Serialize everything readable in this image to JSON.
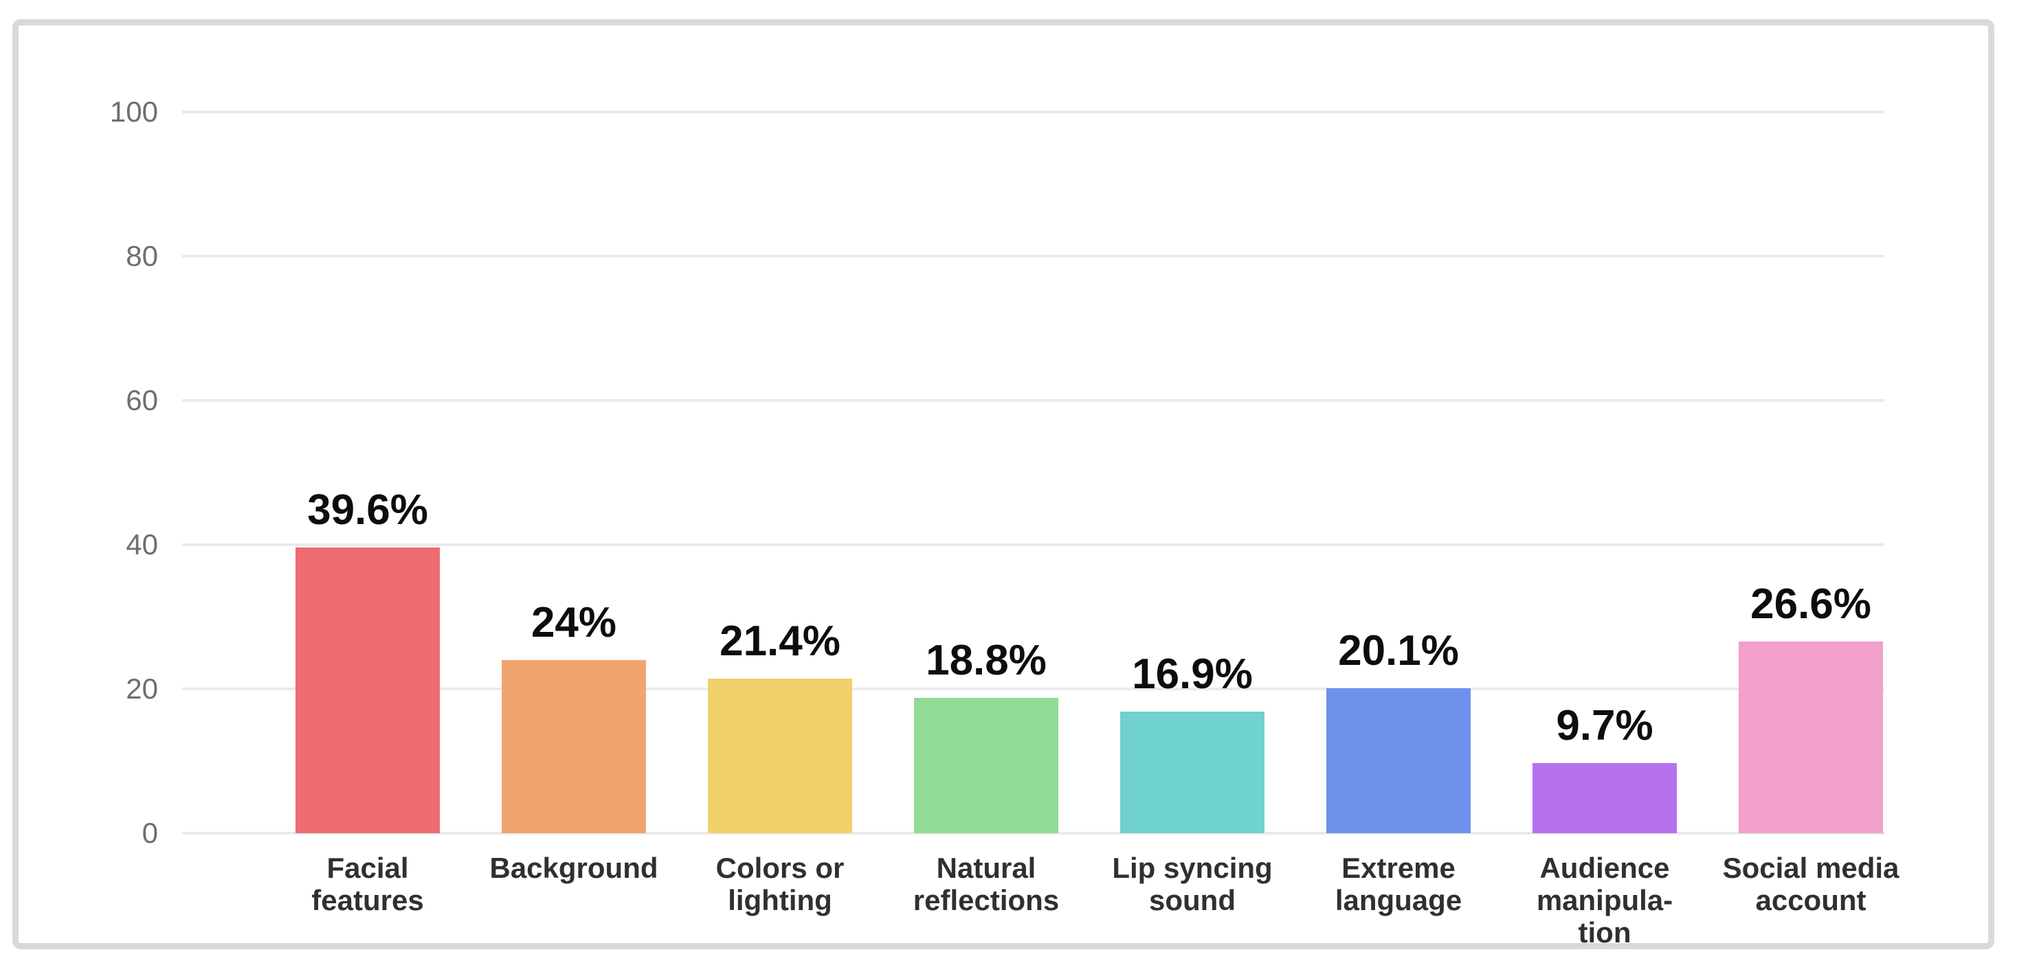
{
  "chart_data": {
    "type": "bar",
    "title": "",
    "xlabel": "",
    "ylabel": "",
    "ylim": [
      0,
      100
    ],
    "yticks": [
      0,
      20,
      40,
      60,
      80,
      100
    ],
    "grid": true,
    "legend": "none",
    "categories": [
      "Facial features",
      "Background",
      "Colors or lighting",
      "Natural reflections",
      "Lip syncing sound",
      "Extreme language",
      "Audience manipulation",
      "Social media account"
    ],
    "values": [
      39.6,
      24,
      21.4,
      18.8,
      16.9,
      20.1,
      9.7,
      26.6
    ],
    "bars": [
      {
        "label_lines": [
          "Facial",
          "features"
        ],
        "value": 39.6,
        "display_value": "39.6%",
        "color": "#EC6C70"
      },
      {
        "label_lines": [
          "Background"
        ],
        "value": 24,
        "display_value": "24%",
        "color": "#F0A570"
      },
      {
        "label_lines": [
          "Colors or",
          "lighting"
        ],
        "value": 21.4,
        "display_value": "21.4%",
        "color": "#F0D069"
      },
      {
        "label_lines": [
          "Natural",
          "reflections"
        ],
        "value": 18.8,
        "display_value": "18.8%",
        "color": "#90DB96"
      },
      {
        "label_lines": [
          "Lip syncing",
          "sound"
        ],
        "value": 16.9,
        "display_value": "16.9%",
        "color": "#6FD2CF"
      },
      {
        "label_lines": [
          "Extreme",
          "language"
        ],
        "value": 20.1,
        "display_value": "20.1%",
        "color": "#6E92EC"
      },
      {
        "label_lines": [
          "Audience",
          "manipula-",
          "tion"
        ],
        "value": 9.7,
        "display_value": "9.7%",
        "color": "#B672EE"
      },
      {
        "label_lines": [
          "Social media",
          "account"
        ],
        "value": 26.6,
        "display_value": "26.6%",
        "color": "#F29FCC"
      }
    ]
  },
  "frame": {
    "border_color": "#D9D9D9",
    "background_color": "#FFFFFF"
  },
  "axis": {
    "gridline_color": "#EAEAEA",
    "tick_label_color": "#6E6E6E",
    "value_label_color": "#0D0D0D",
    "category_label_color": "#303030"
  }
}
